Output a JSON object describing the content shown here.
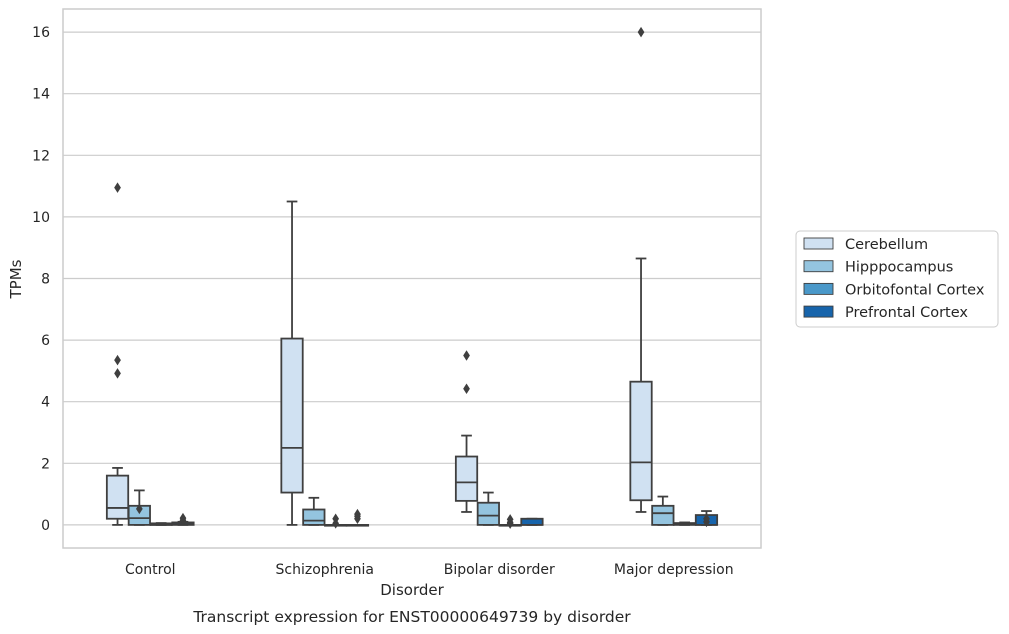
{
  "chart_data": {
    "type": "box",
    "title": "",
    "caption": "Transcript expression for ENST00000649739 by disorder",
    "xlabel": "Disorder",
    "ylabel": "TPMs",
    "ylim": [
      -0.75,
      16.75
    ],
    "yticks": [
      0,
      2,
      4,
      6,
      8,
      10,
      12,
      14,
      16
    ],
    "grid": "horizontal",
    "legend_placement": "right",
    "categories": [
      "Control",
      "Schizophrenia",
      "Bipolar disorder",
      "Major depression"
    ],
    "series": [
      {
        "name": "Cerebellum",
        "color": "#d0e1f2",
        "boxes": [
          {
            "whislo": 0.0,
            "q1": 0.2,
            "med": 0.55,
            "q3": 1.6,
            "whishi": 1.85,
            "fliers": [
              10.95,
              5.35,
              4.92
            ]
          },
          {
            "whislo": 0.0,
            "q1": 1.05,
            "med": 2.5,
            "q3": 6.05,
            "whishi": 10.5,
            "fliers": []
          },
          {
            "whislo": 0.42,
            "q1": 0.78,
            "med": 1.38,
            "q3": 2.22,
            "whishi": 2.9,
            "fliers": [
              5.5,
              4.42
            ]
          },
          {
            "whislo": 0.42,
            "q1": 0.8,
            "med": 2.03,
            "q3": 4.65,
            "whishi": 8.65,
            "fliers": [
              16.0
            ]
          }
        ]
      },
      {
        "name": "Hipppocampus",
        "color": "#94c4df",
        "boxes": [
          {
            "whislo": 0.0,
            "q1": 0.0,
            "med": 0.22,
            "q3": 0.62,
            "whishi": 1.12,
            "fliers": [
              0.52
            ]
          },
          {
            "whislo": 0.0,
            "q1": 0.0,
            "med": 0.14,
            "q3": 0.5,
            "whishi": 0.88,
            "fliers": []
          },
          {
            "whislo": 0.0,
            "q1": 0.0,
            "med": 0.3,
            "q3": 0.72,
            "whishi": 1.05,
            "fliers": []
          },
          {
            "whislo": 0.0,
            "q1": 0.0,
            "med": 0.38,
            "q3": 0.62,
            "whishi": 0.92,
            "fliers": []
          }
        ]
      },
      {
        "name": "Orbitofontal Cortex",
        "color": "#4a98c9",
        "boxes": [
          {
            "whislo": 0.0,
            "q1": 0.0,
            "med": 0.0,
            "q3": 0.05,
            "whishi": 0.06,
            "fliers": []
          },
          {
            "whislo": 0.0,
            "q1": 0.0,
            "med": 0.0,
            "q3": 0.0,
            "whishi": 0.0,
            "fliers": [
              0.2,
              0.05
            ]
          },
          {
            "whislo": 0.0,
            "q1": 0.0,
            "med": 0.0,
            "q3": 0.0,
            "whishi": 0.0,
            "fliers": [
              0.18,
              0.08,
              0.04
            ]
          },
          {
            "whislo": 0.0,
            "q1": 0.0,
            "med": 0.03,
            "q3": 0.06,
            "whishi": 0.08,
            "fliers": []
          }
        ]
      },
      {
        "name": "Prefrontal Cortex",
        "color": "#1764ab",
        "boxes": [
          {
            "whislo": 0.0,
            "q1": 0.0,
            "med": 0.03,
            "q3": 0.08,
            "whishi": 0.1,
            "fliers": [
              0.22,
              0.15
            ]
          },
          {
            "whislo": 0.0,
            "q1": 0.0,
            "med": 0.0,
            "q3": 0.0,
            "whishi": 0.0,
            "fliers": [
              0.35,
              0.28,
              0.2
            ]
          },
          {
            "whislo": 0.0,
            "q1": 0.0,
            "med": 0.0,
            "q3": 0.2,
            "whishi": 0.2,
            "fliers": []
          },
          {
            "whislo": 0.0,
            "q1": 0.0,
            "med": 0.0,
            "q3": 0.32,
            "whishi": 0.45,
            "fliers": [
              0.2,
              0.1
            ]
          }
        ]
      }
    ]
  }
}
